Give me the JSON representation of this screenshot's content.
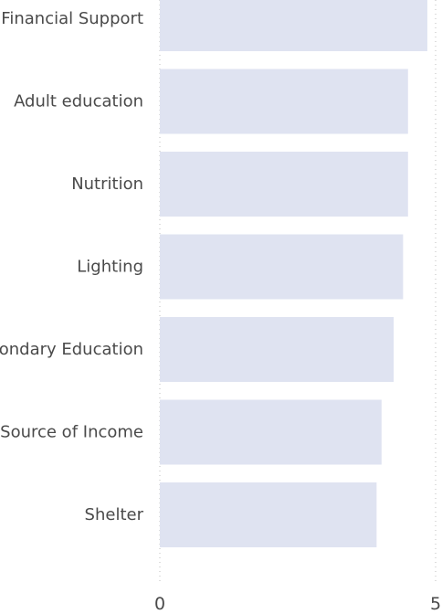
{
  "chart_data": {
    "type": "bar",
    "orientation": "horizontal",
    "categories": [
      "Financial Support",
      "Adult education",
      "Nutrition",
      "Lighting",
      "Secondary Education",
      "Source of Income",
      "Shelter"
    ],
    "values": [
      4.85,
      4.5,
      4.5,
      4.41,
      4.24,
      4.02,
      3.93
    ],
    "xlim": [
      0,
      5
    ],
    "x_ticks": [
      "0",
      "5"
    ],
    "bar_color": "#dfe3f1",
    "grid": true,
    "legend": "none"
  }
}
